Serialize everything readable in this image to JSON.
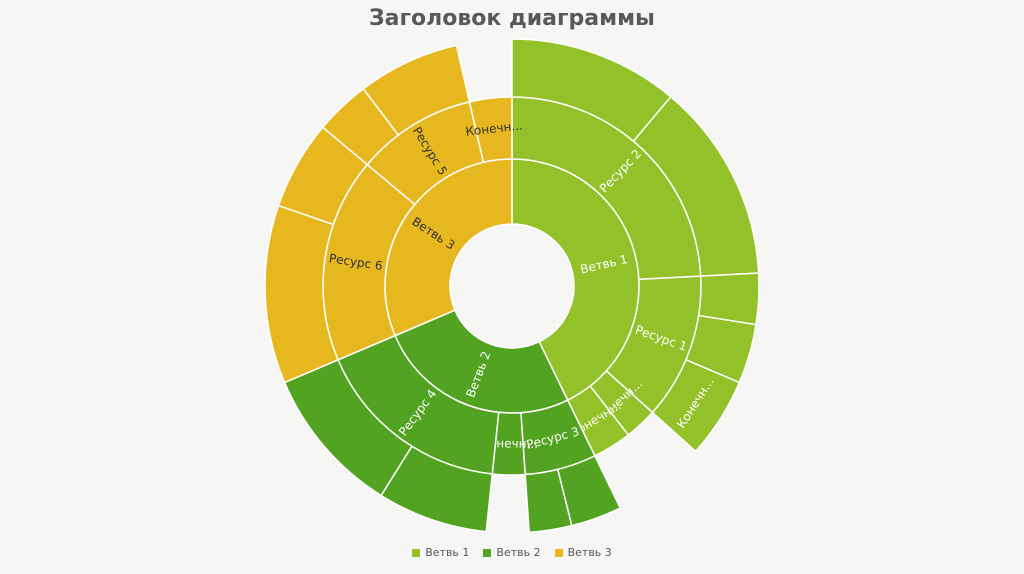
{
  "chart_data": {
    "type": "sunburst",
    "title": "Заголовок диаграммы",
    "legend_position": "bottom",
    "series": [
      {
        "name": "Ветвь 1",
        "color": "#92c12a"
      },
      {
        "name": "Ветвь 2",
        "color": "#52a321"
      },
      {
        "name": "Ветвь 3",
        "color": "#e6b71e"
      }
    ],
    "hierarchy": [
      {
        "label": "Ветвь 1",
        "value": 154,
        "children": [
          {
            "label": "Ресурс 2",
            "value": 87,
            "children": [
              {
                "label": "",
                "value": 40
              },
              {
                "label": "",
                "value": 47
              }
            ]
          },
          {
            "label": "Ресурс 1",
            "value": 45,
            "children": [
              {
                "label": "",
                "value": 12
              },
              {
                "label": "",
                "value": 14
              },
              {
                "label": "Конечн...",
                "value": 19
              }
            ]
          },
          {
            "label": "Конечн...",
            "value": 10,
            "children": []
          },
          {
            "label": "Конечн...",
            "value": 12,
            "children": []
          }
        ]
      },
      {
        "label": "Ветвь 2",
        "value": 93,
        "children": [
          {
            "label": "Ресурс 3",
            "value": 22,
            "children": [
              {
                "label": "",
                "value": 12
              },
              {
                "label": "",
                "value": 10
              }
            ]
          },
          {
            "label": "Конечн...",
            "value": 10,
            "children": []
          },
          {
            "label": "Ресурс 4",
            "value": 61,
            "children": [
              {
                "label": "",
                "value": 26
              },
              {
                "label": "",
                "value": 35
              }
            ]
          }
        ]
      },
      {
        "label": "Ветвь 3",
        "value": 113,
        "children": [
          {
            "label": "Ресурс 6",
            "value": 63,
            "children": [
              {
                "label": "",
                "value": 42
              },
              {
                "label": "",
                "value": 21
              }
            ]
          },
          {
            "label": "Ресурс 5",
            "value": 37,
            "children": [
              {
                "label": "",
                "value": 13
              },
              {
                "label": "",
                "value": 24
              }
            ]
          },
          {
            "label": "Конечн...",
            "value": 13,
            "children": []
          }
        ]
      }
    ]
  }
}
